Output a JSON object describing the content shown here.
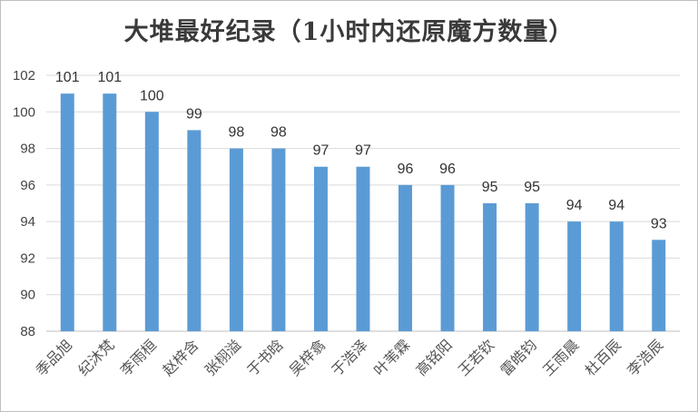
{
  "chart_data": {
    "type": "bar",
    "title": "大堆最好纪录（1小时内还原魔方数量）",
    "categories": [
      "季品旭",
      "纪沐梵",
      "李雨桓",
      "赵梓含",
      "张栩溢",
      "于书晗",
      "吴梓翕",
      "于浩泽",
      "叶苇霖",
      "高铭阳",
      "王若钦",
      "雷皓钧",
      "王雨晨",
      "杜百辰",
      "李浩辰"
    ],
    "values": [
      101,
      101,
      100,
      99,
      98,
      98,
      97,
      97,
      96,
      96,
      95,
      95,
      94,
      94,
      93
    ],
    "ylim": [
      88,
      102
    ],
    "yticks": [
      88,
      90,
      92,
      94,
      96,
      98,
      100,
      102
    ],
    "grid": true,
    "bar_color": "#5b9bd5",
    "xlabel": "",
    "ylabel": ""
  }
}
